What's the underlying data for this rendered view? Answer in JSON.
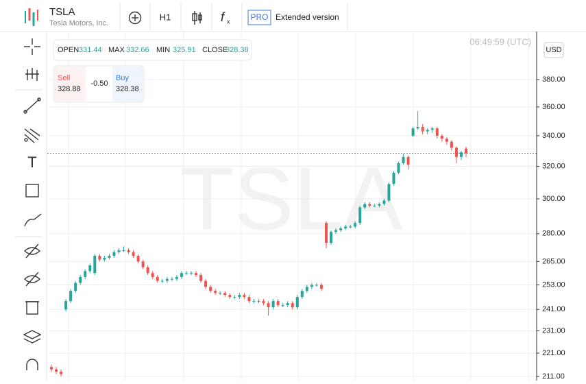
{
  "header": {
    "symbol": "TSLA",
    "company": "Tesla Motors, Inc.",
    "interval": "H1",
    "pro_badge": "PRO",
    "extended": "Extended version"
  },
  "ohlc": {
    "open_label": "OPEN",
    "open": 331.44,
    "max_label": "MAX",
    "max": 332.66,
    "min_label": "MIN",
    "min": 325.91,
    "close_label": "CLOSE",
    "close": 328.38
  },
  "trade": {
    "sell_label": "Sell",
    "sell": 328.88,
    "spread": "-0.50",
    "buy_label": "Buy",
    "buy": 328.38
  },
  "time": "06:49:59 (UTC)",
  "currency": "USD",
  "watermark": "TSLA",
  "chart_data": {
    "type": "candlestick",
    "log_scale": true,
    "grid": true,
    "up_color": "#26a69a",
    "down_color": "#ef5350",
    "last_price_color": "#d9534f",
    "ylim": [
      209.3,
      417.4
    ],
    "yticks": [
      {
        "value": 211,
        "label": "211.00"
      },
      {
        "value": 221,
        "label": "221.00"
      },
      {
        "value": 231,
        "label": "231.00"
      },
      {
        "value": 241,
        "label": "241.00"
      },
      {
        "value": 253,
        "label": "253.00"
      },
      {
        "value": 265,
        "label": "265.00"
      },
      {
        "value": 280,
        "label": "280.00"
      },
      {
        "value": 300,
        "label": "300.00"
      },
      {
        "value": 320,
        "label": "320.00"
      },
      {
        "value": 340,
        "label": "340.00"
      },
      {
        "value": 360,
        "label": "360.00"
      },
      {
        "value": 380,
        "label": "380.00"
      }
    ],
    "categories": [
      null,
      null,
      null,
      null,
      null,
      null,
      null,
      null,
      null,
      null,
      null,
      null,
      null,
      null,
      null,
      null,
      null,
      null,
      null,
      null,
      null,
      null,
      null,
      null,
      null,
      null,
      null,
      null,
      null,
      null,
      null,
      null,
      null,
      null,
      null,
      null,
      null,
      null,
      null,
      null,
      null,
      null,
      null,
      null,
      null,
      null,
      null,
      null,
      null,
      null,
      null,
      null,
      null,
      null,
      null,
      null,
      null,
      null,
      null,
      null,
      null,
      null,
      null,
      null,
      null,
      null,
      null,
      null,
      null,
      null,
      null,
      null,
      null,
      null,
      null,
      null,
      null,
      null,
      null,
      null,
      null,
      null,
      null,
      null,
      null,
      null,
      null
    ],
    "open": [
      215,
      214,
      213,
      241,
      245,
      250,
      254,
      257,
      260,
      259,
      268,
      266,
      267,
      268,
      270,
      271,
      271,
      270,
      268,
      265,
      262,
      259,
      257,
      255,
      255,
      256,
      256,
      257,
      259,
      259,
      259,
      258,
      255,
      252,
      250,
      249,
      249,
      248,
      247,
      247,
      248,
      247,
      245,
      245,
      245,
      244,
      242,
      245,
      243,
      243,
      244,
      242,
      247,
      250,
      252,
      253,
      253,
      286,
      275,
      281,
      282,
      283,
      284,
      284,
      286,
      295,
      297,
      296,
      296,
      297,
      299,
      309,
      316,
      322,
      326,
      340,
      345,
      346,
      343,
      344,
      345,
      340,
      338,
      336,
      332,
      326,
      331.44
    ],
    "high": [
      216,
      215,
      214,
      246,
      251,
      255,
      258,
      261,
      264,
      269,
      269,
      268,
      269,
      271,
      272,
      273,
      272,
      271,
      269,
      266,
      263,
      260,
      258,
      256,
      257,
      257,
      258,
      260,
      260,
      260,
      260,
      259,
      256,
      253,
      251,
      250,
      250,
      249,
      248,
      249,
      249,
      248,
      246,
      246,
      246,
      245,
      246,
      246,
      244,
      245,
      245,
      248,
      251,
      253,
      254,
      254,
      254,
      287,
      282,
      283,
      284,
      285,
      285,
      287,
      296,
      298,
      298,
      297,
      298,
      300,
      310,
      317,
      323,
      328,
      327,
      346,
      357,
      348,
      345,
      346,
      346,
      341,
      339,
      337,
      333,
      330,
      332.66
    ],
    "low": [
      213,
      212,
      211,
      240,
      244,
      249,
      253,
      256,
      259,
      258,
      265,
      265,
      266,
      267,
      269,
      270,
      269,
      267,
      264,
      261,
      258,
      256,
      254,
      254,
      254,
      255,
      255,
      256,
      258,
      258,
      257,
      254,
      251,
      249,
      248,
      248,
      247,
      246,
      246,
      246,
      246,
      244,
      244,
      244,
      243,
      238,
      241,
      242,
      242,
      242,
      241,
      241,
      246,
      249,
      251,
      252,
      250,
      272,
      274,
      280,
      281,
      282,
      283,
      283,
      285,
      294,
      295,
      295,
      295,
      296,
      298,
      308,
      315,
      321,
      318,
      339,
      344,
      341,
      341,
      342,
      338,
      336,
      334,
      330,
      322,
      324,
      325.91
    ],
    "close": [
      214,
      213,
      212,
      245,
      250,
      254,
      257,
      260,
      263,
      268,
      266,
      267,
      268,
      270,
      271,
      271,
      270,
      268,
      265,
      262,
      259,
      257,
      255,
      255,
      256,
      256,
      257,
      259,
      259,
      259,
      258,
      255,
      252,
      250,
      249,
      249,
      248,
      247,
      247,
      248,
      247,
      245,
      245,
      245,
      244,
      242,
      245,
      243,
      243,
      244,
      242,
      247,
      250,
      252,
      253,
      253,
      251,
      275,
      281,
      282,
      283,
      284,
      284,
      286,
      295,
      297,
      296,
      296,
      297,
      299,
      309,
      316,
      322,
      326,
      321,
      345,
      346,
      343,
      344,
      345,
      340,
      338,
      336,
      332,
      326,
      329,
      328.38
    ]
  }
}
